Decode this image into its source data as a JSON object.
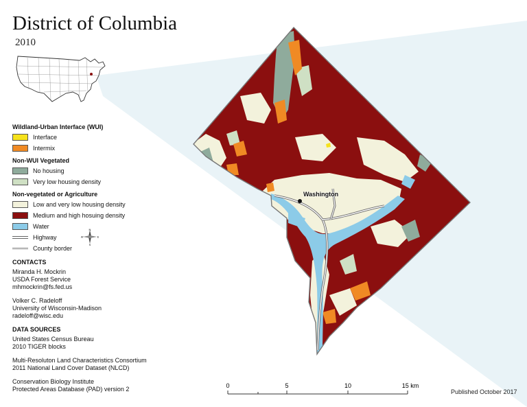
{
  "title": "District of Columbia",
  "year": "2010",
  "colors": {
    "interface": "#f6e21c",
    "intermix": "#f08a24",
    "no_housing": "#8fab9c",
    "very_low": "#cfe0c4",
    "low_density": "#f3f2dc",
    "medium_high": "#8b0f0f",
    "water": "#8ccbe8",
    "beam": "#e8f2f6"
  },
  "legend": {
    "wui": {
      "heading": "Wildland-Urban Interface (WUI)",
      "items": [
        {
          "label": "Interface",
          "color": "#f6e21c"
        },
        {
          "label": "Intermix",
          "color": "#f08a24"
        }
      ]
    },
    "nonwui": {
      "heading": "Non-WUI Vegetated",
      "items": [
        {
          "label": "No housing",
          "color": "#8fab9c"
        },
        {
          "label": "Very low housing density",
          "color": "#cfe0c4"
        }
      ]
    },
    "nonveg": {
      "heading": "Non-vegetated or Agriculture",
      "items": [
        {
          "label": "Low and very low housing density",
          "color": "#f3f2dc"
        },
        {
          "label": "Medium and high hosuing density",
          "color": "#8b0f0f"
        },
        {
          "label": "Water",
          "color": "#8ccbe8"
        }
      ]
    },
    "lines": [
      {
        "label": "Highway",
        "icon": "highway-line"
      },
      {
        "label": "County border",
        "icon": "county-border-line"
      }
    ],
    "compass": {
      "n": "N",
      "s": "S",
      "e": "E",
      "w": "W"
    }
  },
  "contacts": {
    "heading": "CONTACTS",
    "people": [
      {
        "name": "Miranda H. Mockrin",
        "org": "USDA Forest Service",
        "email": "mhmockrin@fs.fed.us"
      },
      {
        "name": "Volker C. Radeloff",
        "org": "University of Wisconsin-Madison",
        "email": "radeloff@wisc.edu"
      }
    ]
  },
  "data_sources": {
    "heading": "DATA SOURCES",
    "sources": [
      {
        "line1": "United States Census Bureau",
        "line2": "2010 TIGER blocks"
      },
      {
        "line1": "Multi-Resoluton Land Characteristics Consortium",
        "line2": "2011 National Land Cover Dataset (NLCD)"
      },
      {
        "line1": "Conservation Biology Institute",
        "line2": "Protected Areas Database (PAD) version 2"
      }
    ]
  },
  "scale": {
    "ticks": [
      "0",
      "5",
      "10",
      "15 km"
    ]
  },
  "published": "Published October 2017",
  "map": {
    "city_label": "Washington"
  }
}
